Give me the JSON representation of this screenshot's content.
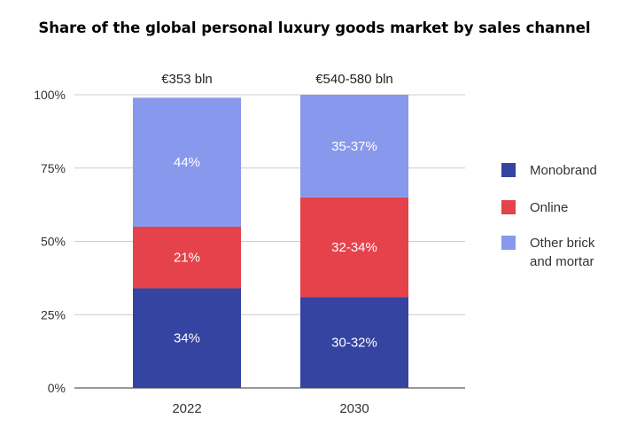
{
  "chart_data": {
    "type": "bar",
    "stacked": true,
    "title": "Share of the global personal luxury goods market by sales channel",
    "xlabel": "",
    "ylabel": "",
    "categories": [
      "2022",
      "2030"
    ],
    "totals": [
      "€353 bln",
      "€540-580 bln"
    ],
    "ylim": [
      0,
      100
    ],
    "yticks": [
      0,
      25,
      50,
      75,
      100
    ],
    "ytick_labels": [
      "0%",
      "25%",
      "50%",
      "75%",
      "100%"
    ],
    "grid": true,
    "legend_position": "right",
    "series": [
      {
        "name": "Monobrand",
        "color": "#3444a0",
        "values": [
          34,
          31
        ],
        "labels": [
          "34%",
          "30-32%"
        ]
      },
      {
        "name": "Online",
        "color": "#e5424b",
        "values": [
          21,
          34
        ],
        "labels": [
          "21%",
          "32-34%"
        ]
      },
      {
        "name": "Other brick and mortar",
        "legend_lines": [
          "Other brick",
          "and mortar"
        ],
        "color": "#8898ed",
        "values": [
          44,
          35
        ],
        "labels": [
          "44%",
          "35-37%"
        ]
      }
    ]
  }
}
